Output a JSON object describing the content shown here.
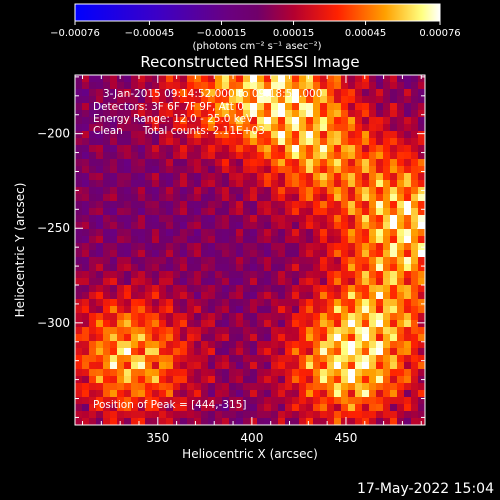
{
  "chart_data": {
    "type": "heatmap",
    "title": "Reconstructed RHESSI Image",
    "xlabel": "Heliocentric X (arcsec)",
    "ylabel": "Heliocentric Y (arcsec)",
    "xlim": [
      306,
      492
    ],
    "ylim": [
      -354,
      -169
    ],
    "xticks": [
      350,
      400,
      450
    ],
    "yticks": [
      -200,
      -250,
      -300
    ],
    "colorbar": {
      "range": [
        -0.00076,
        0.00076
      ],
      "tick_values": [
        -0.00076,
        -0.00045,
        -0.00015,
        0.00015,
        0.00045,
        0.00076
      ],
      "tick_labels": [
        "-0.00076",
        "-0.00045",
        "-0.00015",
        "0.00015",
        "0.00045",
        "0.00076"
      ],
      "units_label": "(photons cm⁻² s⁻¹ asec⁻²)"
    },
    "annotations": [
      "3-Jan-2015 09:14:52.000 to 09:18:52.000",
      "Detectors: 3F 6F 7F 9F, Att 0",
      "Energy Range: 12.0 - 25.0 keV",
      "Clean      Total counts: 2.11E+03"
    ],
    "peak_label": "Position of Peak = [444,-315]",
    "peak": [
      444,
      -315
    ],
    "sources": [
      {
        "x": 335,
        "y": -318,
        "strength": 0.95
      },
      {
        "x": 412,
        "y": -175,
        "strength": 0.9
      },
      {
        "x": 486,
        "y": -245,
        "strength": 0.95
      },
      {
        "x": 451,
        "y": -322,
        "strength": 1.0
      },
      {
        "x": 438,
        "y": -212,
        "strength": 0.7
      },
      {
        "x": 372,
        "y": -180,
        "strength": 0.4
      },
      {
        "x": 470,
        "y": -290,
        "strength": 0.5
      }
    ],
    "grid": false
  },
  "timestamp": "17-May-2022 15:04"
}
